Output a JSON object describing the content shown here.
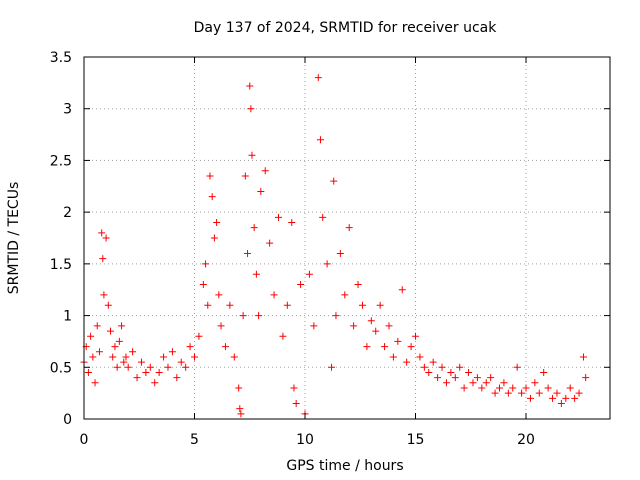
{
  "chart_data": {
    "type": "scatter",
    "title": "Day 137 of 2024, SRMTID for receiver ucak",
    "xlabel": "GPS time / hours",
    "ylabel": "SRMTID / TECUs",
    "xlim": [
      0,
      23.8
    ],
    "ylim": [
      0,
      3.5
    ],
    "xticks": [
      0,
      5,
      10,
      15,
      20
    ],
    "yticks": [
      0,
      0.5,
      1,
      1.5,
      2,
      2.5,
      3,
      3.5
    ],
    "grid": true,
    "marker": "+",
    "color": "#ff0000",
    "series": [
      {
        "name": "SRMTID",
        "x": [
          0.0,
          0.1,
          0.2,
          0.3,
          0.4,
          0.5,
          0.6,
          0.7,
          0.8,
          0.85,
          0.9,
          1.0,
          1.1,
          1.2,
          1.3,
          1.4,
          1.5,
          1.6,
          1.7,
          1.8,
          1.9,
          2.0,
          2.2,
          2.4,
          2.6,
          2.8,
          3.0,
          3.2,
          3.4,
          3.6,
          3.8,
          4.0,
          4.2,
          4.4,
          4.6,
          4.8,
          5.0,
          5.2,
          5.4,
          5.5,
          5.6,
          5.7,
          5.8,
          5.9,
          6.0,
          6.1,
          6.2,
          6.4,
          6.6,
          6.8,
          7.0,
          7.05,
          7.1,
          7.2,
          7.3,
          7.4,
          7.5,
          7.55,
          7.6,
          7.7,
          7.8,
          7.9,
          8.0,
          8.2,
          8.4,
          8.6,
          8.8,
          9.0,
          9.2,
          9.4,
          9.5,
          9.6,
          9.8,
          10.0,
          10.2,
          10.4,
          10.6,
          10.7,
          10.8,
          11.0,
          11.2,
          11.3,
          11.4,
          11.6,
          11.8,
          12.0,
          12.2,
          12.4,
          12.6,
          12.8,
          13.0,
          13.2,
          13.4,
          13.6,
          13.8,
          14.0,
          14.2,
          14.4,
          14.6,
          14.8,
          15.0,
          15.2,
          15.4,
          15.6,
          15.8,
          16.0,
          16.2,
          16.4,
          16.6,
          16.8,
          17.0,
          17.2,
          17.4,
          17.6,
          17.8,
          18.0,
          18.2,
          18.4,
          18.6,
          18.8,
          19.0,
          19.2,
          19.4,
          19.6,
          19.8,
          20.0,
          20.2,
          20.4,
          20.6,
          20.8,
          21.0,
          21.2,
          21.4,
          21.6,
          21.8,
          22.0,
          22.2,
          22.4,
          22.6,
          22.7
        ],
        "y": [
          0.55,
          0.7,
          0.45,
          0.8,
          0.6,
          0.35,
          0.9,
          0.65,
          1.8,
          1.55,
          1.2,
          1.75,
          1.1,
          0.85,
          0.6,
          0.7,
          0.5,
          0.75,
          0.9,
          0.55,
          0.6,
          0.5,
          0.65,
          0.4,
          0.55,
          0.45,
          0.5,
          0.35,
          0.45,
          0.6,
          0.5,
          0.65,
          0.4,
          0.55,
          0.5,
          0.7,
          0.6,
          0.8,
          1.3,
          1.5,
          1.1,
          2.35,
          2.15,
          1.75,
          1.9,
          1.2,
          0.9,
          0.7,
          1.1,
          0.6,
          0.3,
          0.1,
          0.05,
          1.0,
          2.35,
          1.6,
          3.22,
          3.0,
          2.55,
          1.85,
          1.4,
          1.0,
          2.2,
          2.4,
          1.7,
          1.2,
          1.95,
          0.8,
          1.1,
          1.9,
          0.3,
          0.15,
          1.3,
          0.05,
          1.4,
          0.9,
          3.3,
          2.7,
          1.95,
          1.5,
          0.5,
          2.3,
          1.0,
          1.6,
          1.2,
          1.85,
          0.9,
          1.3,
          1.1,
          0.7,
          0.95,
          0.85,
          1.1,
          0.7,
          0.9,
          0.6,
          0.75,
          1.25,
          0.55,
          0.7,
          0.8,
          0.6,
          0.5,
          0.45,
          0.55,
          0.4,
          0.5,
          0.35,
          0.45,
          0.4,
          0.5,
          0.3,
          0.45,
          0.35,
          0.4,
          0.3,
          0.35,
          0.4,
          0.25,
          0.3,
          0.35,
          0.25,
          0.3,
          0.5,
          0.25,
          0.3,
          0.2,
          0.35,
          0.25,
          0.45,
          0.3,
          0.2,
          0.25,
          0.15,
          0.2,
          0.3,
          0.2,
          0.25,
          0.6,
          0.4
        ]
      }
    ]
  }
}
